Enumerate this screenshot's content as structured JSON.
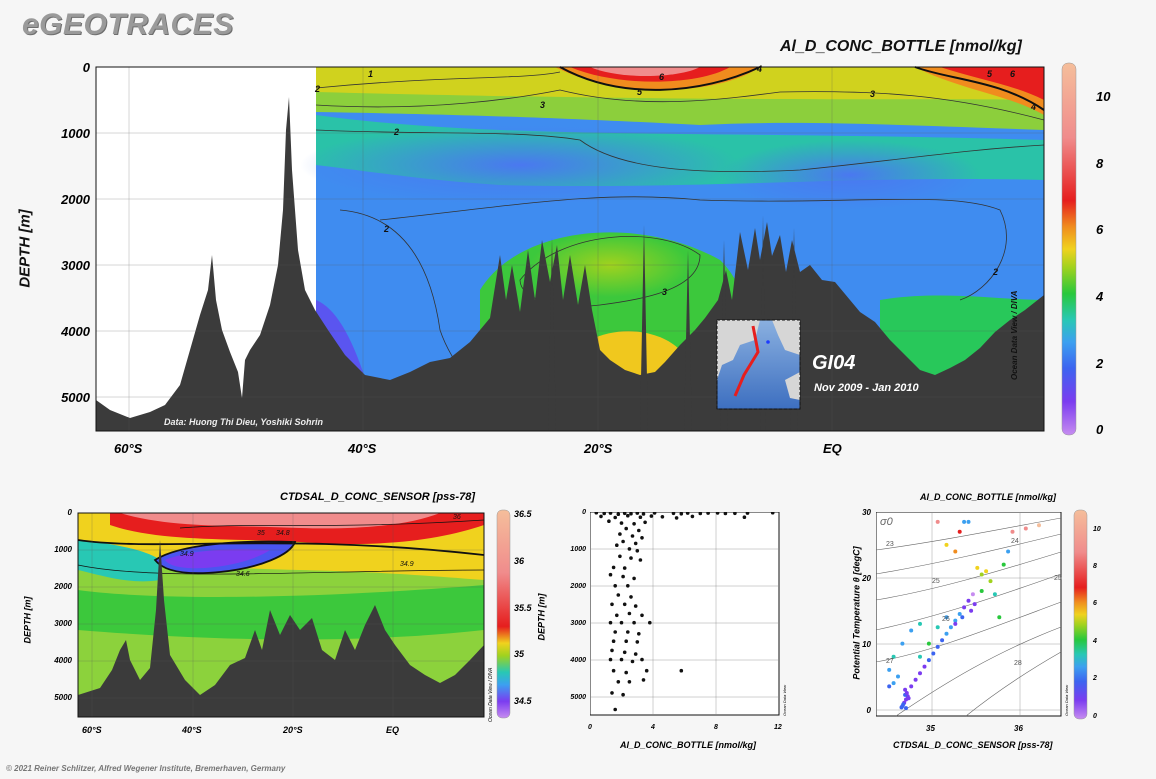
{
  "brand": "eGEOTRACES",
  "footer": "© 2021 Reiner Schlitzer, Alfred Wegener Institute, Bremerhaven, Germany",
  "colors": {
    "terrain": "#3b3b3b",
    "background": "#f6f6f6",
    "scale": [
      "#c68cf0",
      "#7b3cf0",
      "#3c64f0",
      "#3ca0f0",
      "#28c8b4",
      "#28c83c",
      "#a0d21e",
      "#f0d21e",
      "#f08c1e",
      "#e61e1e",
      "#f08c8c",
      "#f5be9b"
    ]
  },
  "main": {
    "title": "Al_D_CONC_BOTTLE [nmol/kg]",
    "ylabel": "DEPTH [m]",
    "credit": "Data: Huong Thi Dieu, Yoshiki Sohrin",
    "side_label": "Ocean Data View / DIVA",
    "section": "GI04",
    "period": "Nov 2009 - Jan 2010",
    "colorbar_ticks": [
      "10",
      "8",
      "6",
      "4",
      "2",
      "0"
    ],
    "contour_labels": [
      "1",
      "2",
      "2",
      "2",
      "2",
      "3",
      "3",
      "3",
      "4",
      "4",
      "5",
      "5",
      "6",
      "6"
    ]
  },
  "sal": {
    "title": "CTDSAL_D_CONC_SENSOR [pss-78]",
    "ylabel": "DEPTH [m]",
    "side_label": "Ocean Data View / DIVA",
    "colorbar_ticks": [
      "36.5",
      "36",
      "35.5",
      "35",
      "34.5"
    ],
    "contour_labels": [
      "34.6",
      "34.8",
      "34.9",
      "34.9",
      "35",
      "36"
    ]
  },
  "profile": {
    "ylabel": "DEPTH [m]",
    "xlabel": "Al_D_CONC_BOTTLE [nmol/kg]",
    "side_label": "Ocean Data View"
  },
  "ts": {
    "title": "Al_D_CONC_BOTTLE [nmol/kg]",
    "ylabel": "Potential Temperature θ [degC]",
    "xlabel": "CTDSAL_D_CONC_SENSOR [pss-78]",
    "sigma_label": "σ0",
    "side_label": "Ocean Data View",
    "colorbar_ticks": [
      "10",
      "8",
      "6",
      "4",
      "2",
      "0"
    ],
    "isopycnals": [
      "23",
      "24",
      "25",
      "25",
      "26",
      "27",
      "28"
    ]
  },
  "chart_data": [
    {
      "type": "heatmap",
      "title": "Al_D_CONC_BOTTLE [nmol/kg]",
      "ylabel": "DEPTH [m]",
      "x_ticks": [
        "60°S",
        "40°S",
        "20°S",
        "EQ"
      ],
      "xlim": [
        -70,
        10
      ],
      "y_ticks": [
        0,
        1000,
        2000,
        3000,
        4000,
        5000
      ],
      "ylim": [
        0,
        5500
      ],
      "y_reversed": true,
      "colorbar": {
        "min": 0,
        "max": 11,
        "ticks": [
          0,
          2,
          4,
          6,
          8,
          10
        ]
      },
      "grid": true
    },
    {
      "type": "heatmap",
      "title": "CTDSAL_D_CONC_SENSOR [pss-78]",
      "ylabel": "DEPTH [m]",
      "x_ticks": [
        "60°S",
        "40°S",
        "20°S",
        "EQ"
      ],
      "y_ticks": [
        0,
        1000,
        2000,
        3000,
        4000,
        5000
      ],
      "ylim": [
        0,
        5500
      ],
      "y_reversed": true,
      "colorbar": {
        "min": 34.4,
        "max": 36.6,
        "ticks": [
          34.5,
          35,
          35.5,
          36,
          36.5
        ]
      },
      "grid": true
    },
    {
      "type": "scatter",
      "xlabel": "Al_D_CONC_BOTTLE [nmol/kg]",
      "ylabel": "DEPTH [m]",
      "x_ticks": [
        0,
        4,
        8,
        12
      ],
      "xlim": [
        0,
        12
      ],
      "y_ticks": [
        0,
        1000,
        2000,
        3000,
        4000,
        5000
      ],
      "ylim": [
        0,
        5500
      ],
      "y_reversed": true,
      "grid": true,
      "points": [
        [
          0.4,
          20
        ],
        [
          0.9,
          40
        ],
        [
          1.3,
          30
        ],
        [
          1.8,
          60
        ],
        [
          2.2,
          35
        ],
        [
          2.6,
          45
        ],
        [
          3.0,
          30
        ],
        [
          3.4,
          55
        ],
        [
          4.1,
          25
        ],
        [
          5.3,
          35
        ],
        [
          5.8,
          50
        ],
        [
          6.2,
          30
        ],
        [
          7.0,
          40
        ],
        [
          7.5,
          30
        ],
        [
          8.1,
          25
        ],
        [
          8.6,
          40
        ],
        [
          9.2,
          35
        ],
        [
          10.0,
          30
        ],
        [
          11.6,
          20
        ],
        [
          0.7,
          120
        ],
        [
          1.6,
          150
        ],
        [
          2.4,
          100
        ],
        [
          3.2,
          140
        ],
        [
          3.9,
          110
        ],
        [
          4.6,
          130
        ],
        [
          5.5,
          160
        ],
        [
          6.5,
          120
        ],
        [
          9.8,
          140
        ],
        [
          1.2,
          250
        ],
        [
          2.0,
          300
        ],
        [
          2.8,
          320
        ],
        [
          3.5,
          280
        ],
        [
          2.3,
          450
        ],
        [
          3.1,
          500
        ],
        [
          1.9,
          600
        ],
        [
          2.7,
          650
        ],
        [
          3.3,
          700
        ],
        [
          2.1,
          800
        ],
        [
          2.9,
          850
        ],
        [
          1.7,
          900
        ],
        [
          2.5,
          1000
        ],
        [
          3.0,
          1050
        ],
        [
          1.9,
          1200
        ],
        [
          2.6,
          1250
        ],
        [
          3.2,
          1300
        ],
        [
          1.5,
          1500
        ],
        [
          2.2,
          1520
        ],
        [
          1.3,
          1700
        ],
        [
          2.1,
          1750
        ],
        [
          2.8,
          1800
        ],
        [
          1.6,
          2000
        ],
        [
          2.4,
          2000
        ],
        [
          1.8,
          2250
        ],
        [
          2.6,
          2300
        ],
        [
          1.4,
          2500
        ],
        [
          2.2,
          2500
        ],
        [
          2.9,
          2550
        ],
        [
          1.7,
          2800
        ],
        [
          2.5,
          2750
        ],
        [
          3.3,
          2800
        ],
        [
          1.3,
          3000
        ],
        [
          2.0,
          3000
        ],
        [
          2.8,
          3000
        ],
        [
          3.8,
          3000
        ],
        [
          1.6,
          3250
        ],
        [
          2.4,
          3250
        ],
        [
          3.1,
          3300
        ],
        [
          1.5,
          3500
        ],
        [
          2.3,
          3500
        ],
        [
          3.0,
          3520
        ],
        [
          1.4,
          3750
        ],
        [
          2.2,
          3800
        ],
        [
          2.9,
          3850
        ],
        [
          1.3,
          4000
        ],
        [
          2.0,
          4000
        ],
        [
          2.7,
          4050
        ],
        [
          3.3,
          4000
        ],
        [
          1.5,
          4300
        ],
        [
          2.3,
          4350
        ],
        [
          3.6,
          4300
        ],
        [
          5.8,
          4300
        ],
        [
          1.8,
          4600
        ],
        [
          2.5,
          4600
        ],
        [
          3.4,
          4550
        ],
        [
          1.4,
          4900
        ],
        [
          2.1,
          4950
        ],
        [
          1.6,
          5350
        ]
      ]
    },
    {
      "type": "scatter",
      "title": "Al_D_CONC_BOTTLE [nmol/kg]",
      "xlabel": "CTDSAL_D_CONC_SENSOR [pss-78]",
      "ylabel": "Potential Temperature θ [degC]",
      "x_ticks": [
        35,
        36
      ],
      "xlim": [
        34.4,
        36.5
      ],
      "y_ticks": [
        0,
        10,
        20,
        30
      ],
      "ylim": [
        -1,
        30
      ],
      "grid": true,
      "color_by": "Al_D_CONC_BOTTLE [nmol/kg]",
      "colorbar": {
        "min": 0,
        "max": 11,
        "ticks": [
          0,
          2,
          4,
          6,
          8,
          10
        ]
      },
      "points": [
        [
          34.7,
          0.5,
          2.0
        ],
        [
          34.72,
          1.0,
          1.5
        ],
        [
          34.74,
          1.5,
          1.8
        ],
        [
          34.76,
          2.0,
          1.2
        ],
        [
          34.73,
          2.2,
          2.2
        ],
        [
          34.75,
          2.5,
          1.0
        ],
        [
          34.71,
          0.8,
          2.4
        ],
        [
          34.69,
          0.3,
          2.6
        ],
        [
          34.77,
          1.7,
          1.4
        ],
        [
          34.74,
          0.2,
          1.9
        ],
        [
          34.73,
          3.0,
          1.6
        ],
        [
          34.8,
          3.5,
          1.3
        ],
        [
          34.85,
          4.5,
          1.1
        ],
        [
          34.9,
          5.5,
          1.5
        ],
        [
          34.95,
          6.5,
          1.7
        ],
        [
          35.0,
          7.5,
          2.0
        ],
        [
          35.05,
          8.5,
          1.9
        ],
        [
          35.1,
          9.5,
          2.3
        ],
        [
          35.15,
          10.5,
          2.6
        ],
        [
          35.2,
          11.5,
          2.8
        ],
        [
          35.25,
          12.5,
          3.2
        ],
        [
          35.3,
          13.5,
          3.0
        ],
        [
          35.35,
          14.5,
          3.5
        ],
        [
          35.4,
          15.5,
          1.8
        ],
        [
          35.45,
          16.5,
          1.2
        ],
        [
          35.5,
          17.5,
          0.8
        ],
        [
          35.52,
          16.0,
          1.0
        ],
        [
          35.48,
          15.0,
          1.4
        ],
        [
          35.38,
          14.0,
          2.2
        ],
        [
          35.3,
          13.0,
          1.6
        ],
        [
          34.55,
          6.0,
          3.5
        ],
        [
          34.6,
          8.0,
          3.8
        ],
        [
          34.7,
          10.0,
          3.6
        ],
        [
          34.8,
          12.0,
          3.3
        ],
        [
          34.9,
          13.0,
          4.2
        ],
        [
          34.65,
          5.0,
          3.0
        ],
        [
          34.6,
          4.0,
          2.8
        ],
        [
          34.55,
          3.5,
          2.5
        ],
        [
          34.9,
          8.0,
          4.5
        ],
        [
          35.0,
          10.0,
          4.8
        ],
        [
          35.1,
          12.5,
          4.0
        ],
        [
          35.2,
          14.0,
          3.2
        ],
        [
          35.6,
          20.5,
          6.0
        ],
        [
          35.7,
          19.5,
          5.5
        ],
        [
          35.55,
          21.5,
          6.5
        ],
        [
          35.3,
          24.0,
          8.0
        ],
        [
          35.2,
          25.0,
          7.2
        ],
        [
          35.35,
          27.0,
          9.0
        ],
        [
          35.1,
          28.5,
          9.5
        ],
        [
          35.6,
          18.0,
          5.2
        ],
        [
          35.75,
          17.5,
          4.2
        ],
        [
          35.8,
          14.0,
          4.6
        ],
        [
          35.85,
          22.0,
          4.8
        ],
        [
          35.9,
          24.0,
          3.2
        ],
        [
          35.95,
          27.0,
          9.6
        ],
        [
          36.1,
          27.5,
          9.8
        ],
        [
          36.25,
          28.0,
          10.2
        ],
        [
          35.4,
          28.5,
          3.0
        ],
        [
          35.45,
          28.5,
          3.3
        ],
        [
          35.65,
          21.0,
          6.8
        ]
      ]
    }
  ]
}
